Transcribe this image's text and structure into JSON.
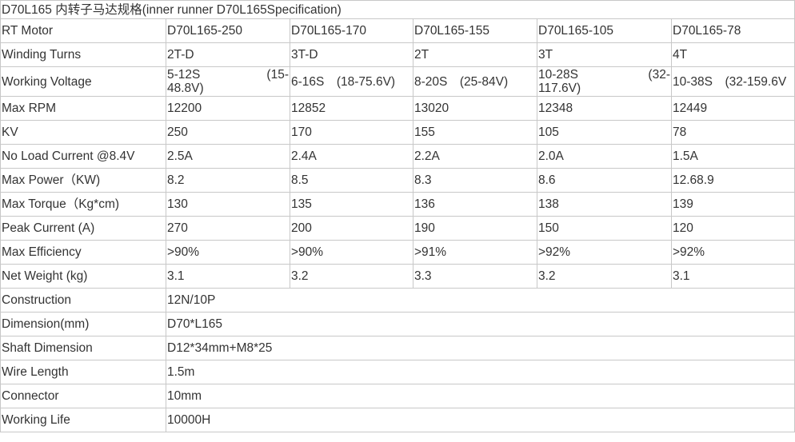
{
  "title": "D70L165 内转子马达规格(inner runner D70L165Specification)",
  "header": {
    "label": "RT Motor",
    "models": [
      "D70L165-250",
      "D70L165-170",
      "D70L165-155",
      "D70L165-105",
      "D70L165-78"
    ]
  },
  "rows": [
    {
      "label": "Winding Turns",
      "values": [
        "2T-D",
        "3T-D",
        "2T",
        "3T",
        "4T"
      ]
    },
    {
      "label": "Working Voltage",
      "values": [
        "5-12S　　　(15-48.8V)",
        "6-16S　(18-75.6V)",
        "8-20S　(25-84V)",
        "10-28S　　　(32-117.6V)",
        "10-38S　(32-159.6V"
      ]
    },
    {
      "label": "Max RPM",
      "values": [
        "12200",
        "12852",
        "13020",
        "12348",
        "12449"
      ]
    },
    {
      "label": "KV",
      "values": [
        "250",
        "170",
        "155",
        "105",
        "78"
      ]
    },
    {
      "label": "No Load Current @8.4V",
      "values": [
        "2.5A",
        "2.4A",
        "2.2A",
        "2.0A",
        "1.5A"
      ]
    },
    {
      "label": "Max Power（KW)",
      "values": [
        "8.2",
        "8.5",
        "8.3",
        "8.6",
        "12.68.9"
      ]
    },
    {
      "label": "Max Torque（Kg*cm)",
      "values": [
        "130",
        "135",
        "136",
        "138",
        "139"
      ]
    },
    {
      "label": "Peak Current (A)",
      "values": [
        "270",
        "200",
        "190",
        "150",
        "120"
      ]
    },
    {
      "label": "Max Efficiency",
      "values": [
        ">90%",
        ">90%",
        ">91%",
        ">92%",
        ">92%"
      ]
    },
    {
      "label": "Net Weight (kg)",
      "values": [
        "3.1",
        "3.2",
        "3.3",
        "3.2",
        "3.1"
      ]
    }
  ],
  "common_rows": [
    {
      "label": "Construction",
      "value": "12N/10P"
    },
    {
      "label": "Dimension(mm)",
      "value": "D70*L165"
    },
    {
      "label": "Shaft Dimension",
      "value": "D12*34mm+M8*25"
    },
    {
      "label": "Wire Length",
      "value": "1.5m"
    },
    {
      "label": "Connector",
      "value": "10mm"
    },
    {
      "label": "Working Life",
      "value": "10000H"
    }
  ]
}
